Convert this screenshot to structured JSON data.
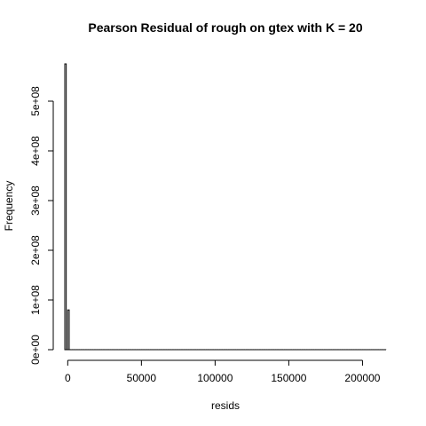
{
  "chart_data": {
    "type": "bar",
    "title": "Pearson Residual of rough on gtex with K = 20",
    "xlabel": "resids",
    "ylabel": "Frequency",
    "grid": false,
    "x_ticks": [
      0,
      50000,
      100000,
      150000,
      200000
    ],
    "x_tick_labels": [
      "0",
      "50000",
      "100000",
      "150000",
      "200000"
    ],
    "y_ticks": [
      0,
      100000000,
      200000000,
      300000000,
      400000000,
      500000000
    ],
    "y_tick_labels": [
      "0e+00",
      "1e+08",
      "2e+08",
      "3e+08",
      "4e+08",
      "5e+08"
    ],
    "x_range": [
      -2000,
      216000
    ],
    "y_range": [
      0,
      575000000
    ],
    "bin_width": 1000,
    "bins": [
      {
        "start": -2000,
        "end": -1000,
        "count": 575000000
      },
      {
        "start": -1000,
        "end": 0,
        "count": 0
      },
      {
        "start": 0,
        "end": 1000,
        "count": 80000000
      }
    ],
    "bins_end": 216000
  }
}
